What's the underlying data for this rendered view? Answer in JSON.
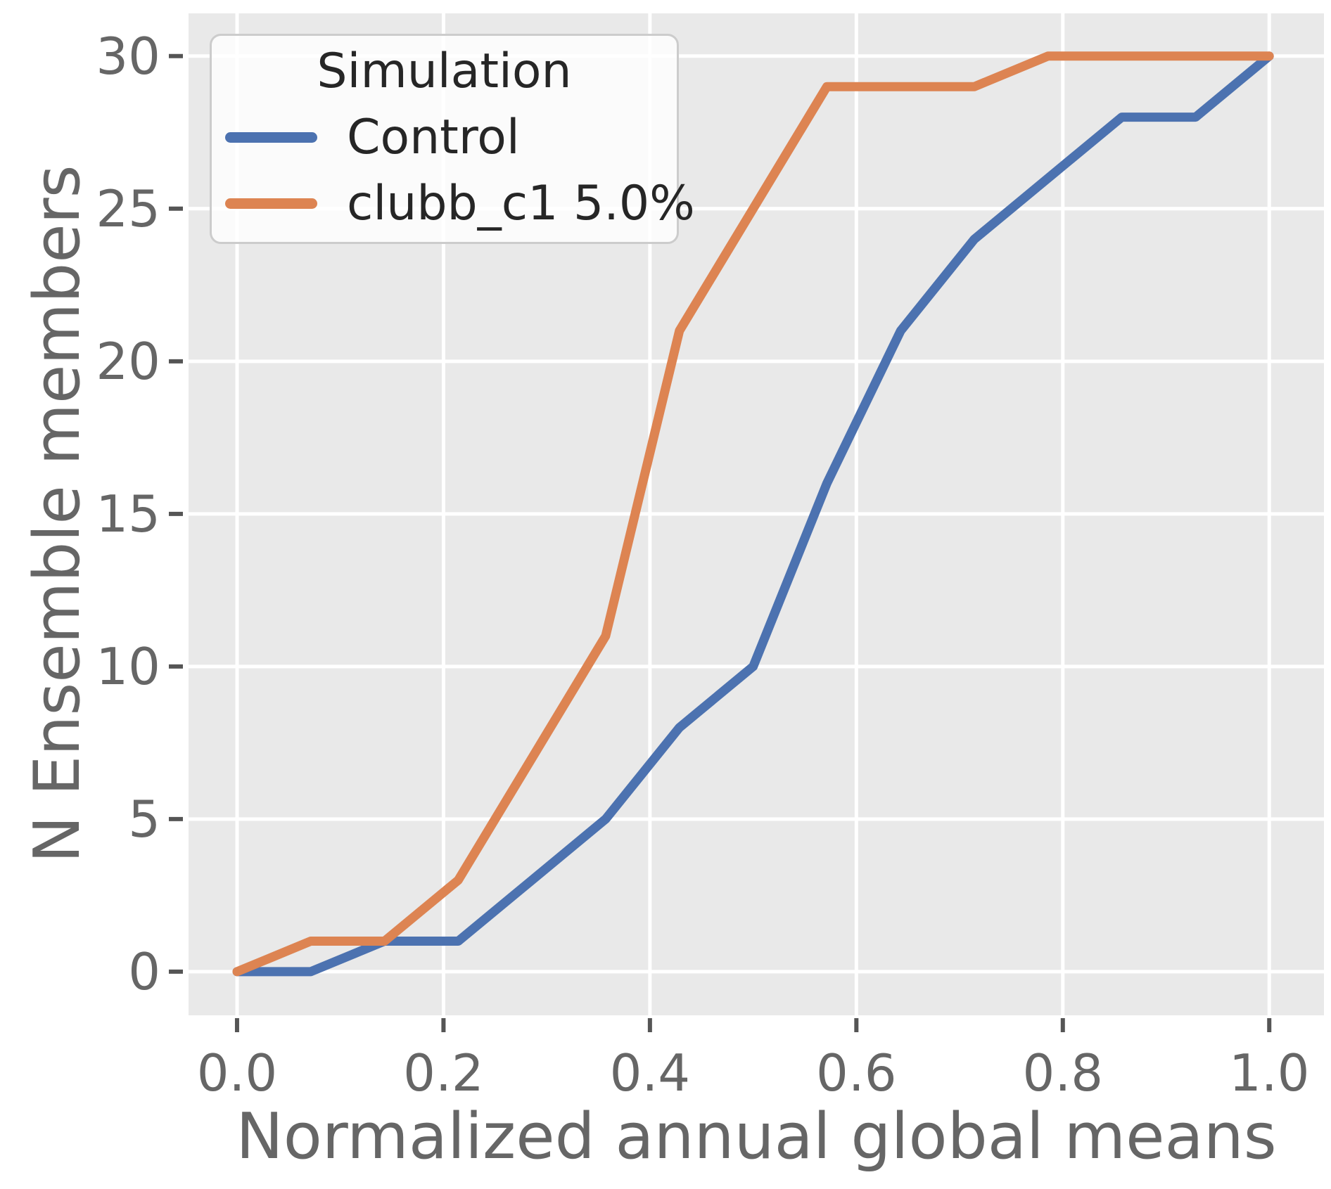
{
  "chart_data": {
    "type": "line",
    "xlabel": "Normalized annual global means",
    "ylabel": "N Ensemble members",
    "legend_title": "Simulation",
    "legend_position": "upper left",
    "grid": true,
    "plot_background": "#e9e9e9",
    "grid_color": "#ffffff",
    "tick_color": "#555555",
    "text_color": "#666666",
    "legend_text_color": "#262626",
    "xlim": [
      -0.047,
      1.053
    ],
    "ylim": [
      -1.43,
      31.4
    ],
    "xticks": [
      0.0,
      0.2,
      0.4,
      0.6,
      0.8,
      1.0
    ],
    "xticklabels": [
      "0.0",
      "0.2",
      "0.4",
      "0.6",
      "0.8",
      "1.0"
    ],
    "yticks": [
      0,
      5,
      10,
      15,
      20,
      25,
      30
    ],
    "yticklabels": [
      "0",
      "5",
      "10",
      "15",
      "20",
      "25",
      "30"
    ],
    "x": [
      0.0,
      0.0714,
      0.1429,
      0.2143,
      0.2857,
      0.3571,
      0.4286,
      0.5,
      0.5714,
      0.6429,
      0.7143,
      0.7857,
      0.8571,
      0.9286,
      1.0
    ],
    "series": [
      {
        "name": "Control",
        "color": "#4C72B0",
        "values": [
          0,
          0,
          1,
          1,
          3,
          5,
          8,
          10,
          16,
          21,
          24,
          26,
          28,
          28,
          30
        ]
      },
      {
        "name": "clubb_c1 5.0%",
        "color": "#DD8452",
        "values": [
          0,
          1,
          1,
          3,
          7,
          11,
          21,
          25,
          29,
          29,
          29,
          30,
          30,
          30,
          30
        ]
      }
    ]
  }
}
